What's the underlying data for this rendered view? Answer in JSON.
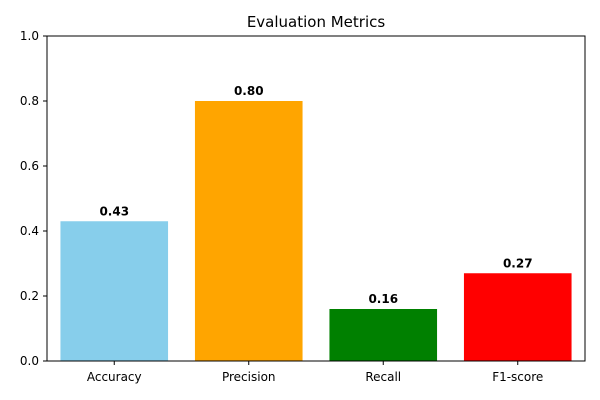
{
  "chart_data": {
    "type": "bar",
    "title": "Evaluation Metrics",
    "xlabel": "",
    "ylabel": "",
    "categories": [
      "Accuracy",
      "Precision",
      "Recall",
      "F1-score"
    ],
    "values": [
      0.43,
      0.8,
      0.16,
      0.27
    ],
    "data_labels": [
      "0.43",
      "0.80",
      "0.16",
      "0.27"
    ],
    "colors": [
      "#87ceeb",
      "#ffa500",
      "#008000",
      "#ff0000"
    ],
    "ylim": [
      0,
      1.0
    ],
    "yticks": [
      0.0,
      0.2,
      0.4,
      0.6,
      0.8,
      1.0
    ],
    "ytick_labels": [
      "0.0",
      "0.2",
      "0.4",
      "0.6",
      "0.8",
      "1.0"
    ],
    "grid": false,
    "legend": "none"
  }
}
